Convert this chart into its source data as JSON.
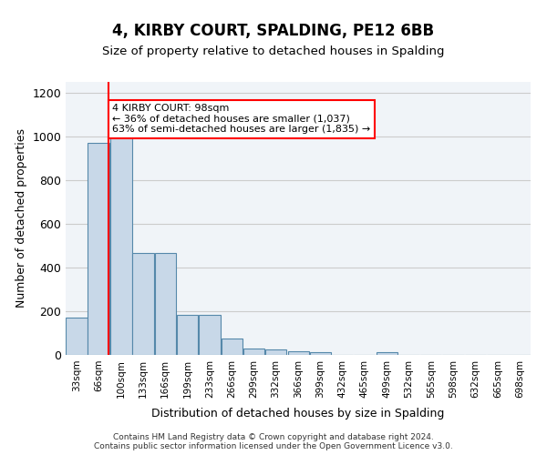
{
  "title": "4, KIRBY COURT, SPALDING, PE12 6BB",
  "subtitle": "Size of property relative to detached houses in Spalding",
  "xlabel": "Distribution of detached houses by size in Spalding",
  "ylabel": "Number of detached properties",
  "footer_line1": "Contains HM Land Registry data © Crown copyright and database right 2024.",
  "footer_line2": "Contains public sector information licensed under the Open Government Licence v3.0.",
  "bar_color": "#c8d8e8",
  "bar_edge_color": "#5588aa",
  "grid_color": "#cccccc",
  "background_color": "#f0f4f8",
  "annotation_text": "4 KIRBY COURT: 98sqm\n← 36% of detached houses are smaller (1,037)\n63% of semi-detached houses are larger (1,835) →",
  "annotation_box_color": "red",
  "vline_color": "red",
  "vline_x": 98,
  "categories": [
    "33sqm",
    "66sqm",
    "100sqm",
    "133sqm",
    "166sqm",
    "199sqm",
    "233sqm",
    "266sqm",
    "299sqm",
    "332sqm",
    "366sqm",
    "399sqm",
    "432sqm",
    "465sqm",
    "499sqm",
    "532sqm",
    "565sqm",
    "598sqm",
    "632sqm",
    "665sqm",
    "698sqm"
  ],
  "bin_edges": [
    33,
    66,
    100,
    133,
    166,
    199,
    233,
    266,
    299,
    332,
    366,
    399,
    432,
    465,
    499,
    532,
    565,
    598,
    632,
    665,
    698
  ],
  "values": [
    170,
    970,
    1000,
    465,
    465,
    185,
    185,
    75,
    30,
    23,
    18,
    12,
    0,
    0,
    12,
    0,
    0,
    0,
    0,
    0,
    0
  ],
  "ylim": [
    0,
    1250
  ],
  "yticks": [
    0,
    200,
    400,
    600,
    800,
    1000,
    1200
  ]
}
